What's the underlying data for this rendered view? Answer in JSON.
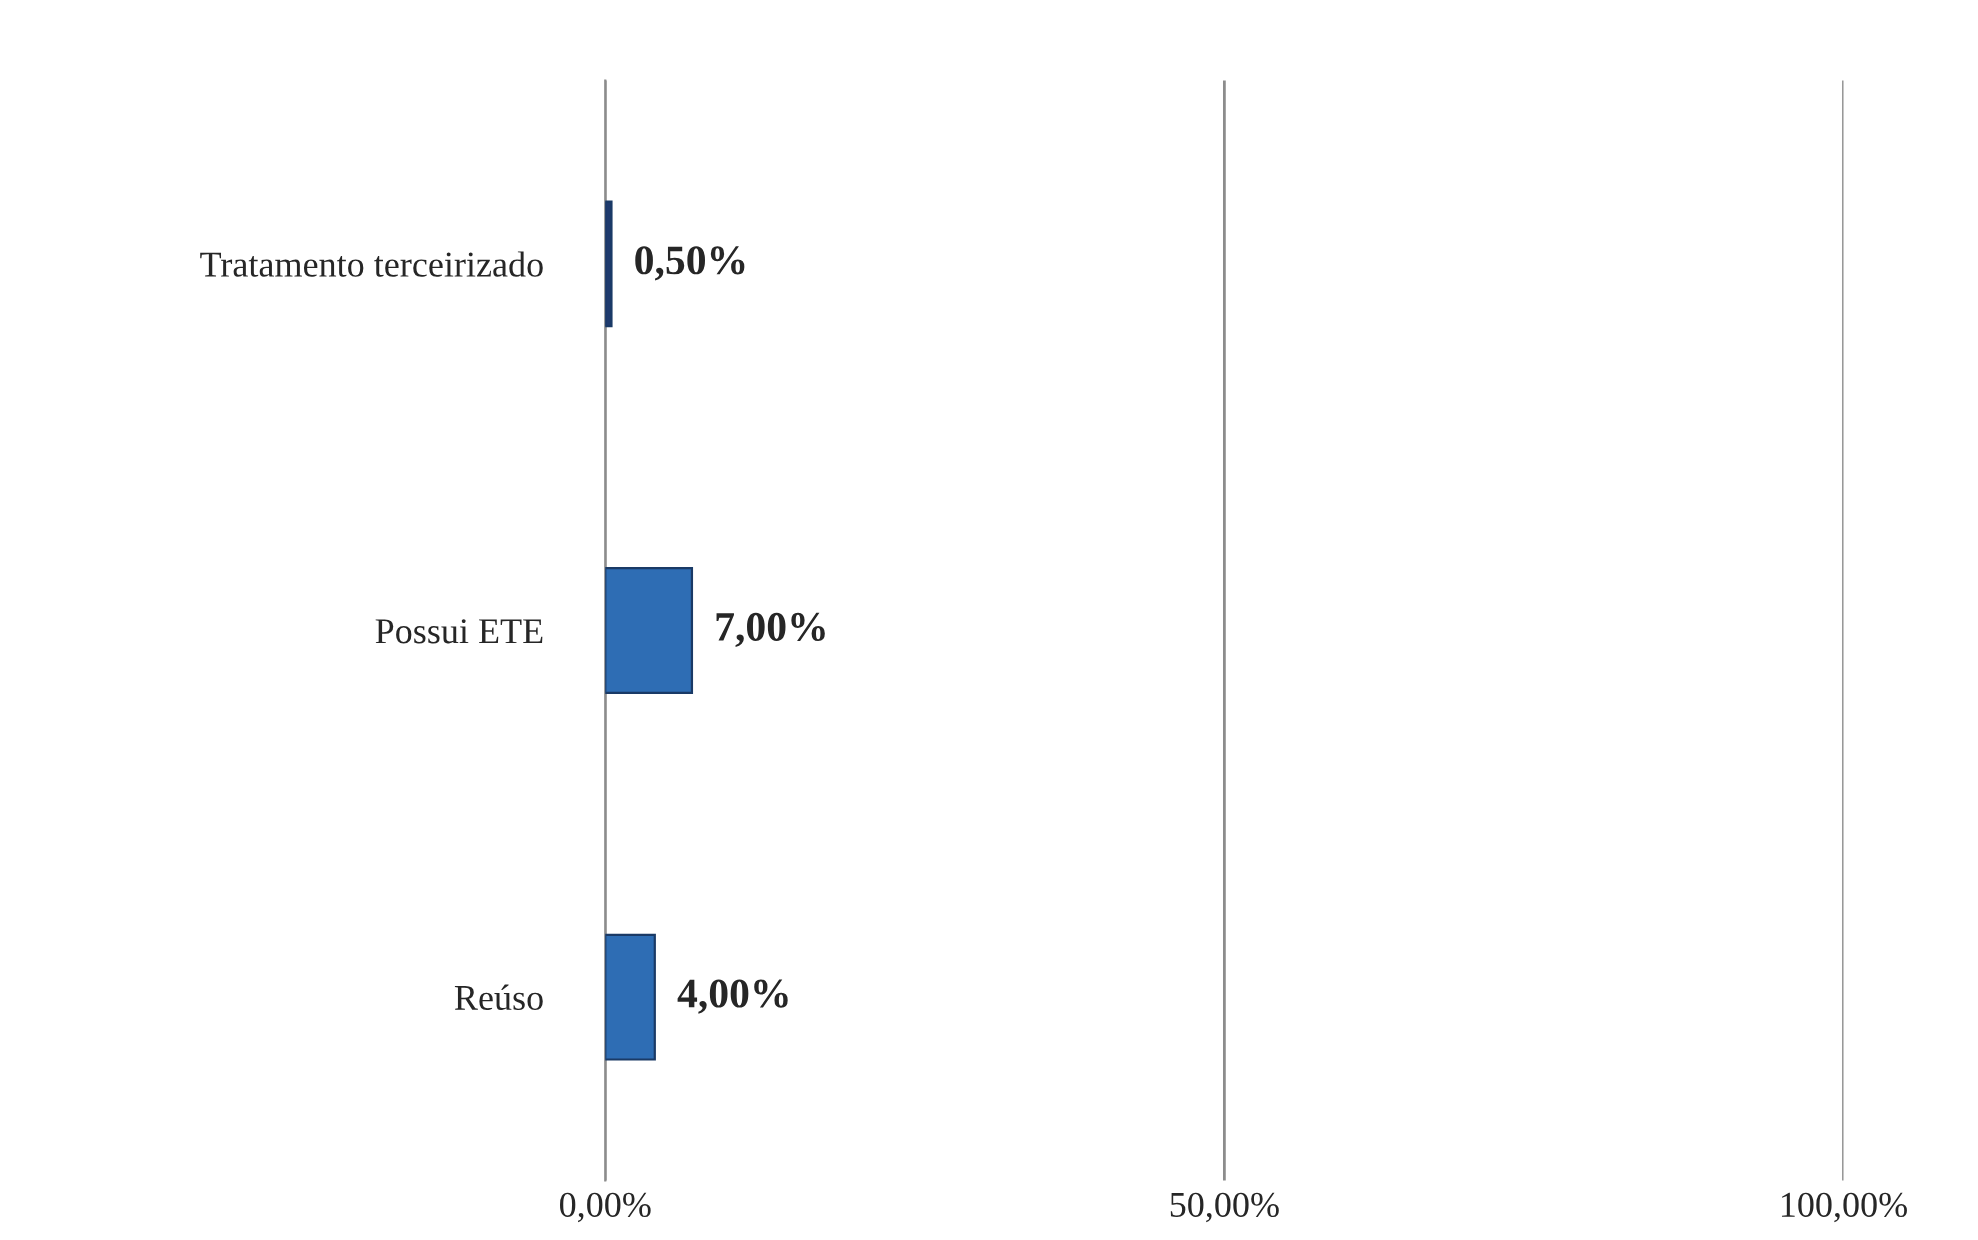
{
  "chart_data": {
    "type": "bar",
    "orientation": "horizontal",
    "categories": [
      "Tratamento terceirizado",
      "Possui ETE",
      "Reúso"
    ],
    "values": [
      0.5,
      7.0,
      4.0
    ],
    "colors": [
      "#1f3b6e",
      "#2e6db4",
      "#2e6db4"
    ],
    "value_labels": [
      "0,50%",
      "7,00%",
      "4,00%"
    ],
    "xlim": [
      0,
      100
    ],
    "xticks": [
      {
        "value": 0,
        "label": "0,00%"
      },
      {
        "value": 50,
        "label": "50,00%"
      },
      {
        "value": 100,
        "label": "100,00%"
      }
    ],
    "grid": "x",
    "legend": false
  }
}
